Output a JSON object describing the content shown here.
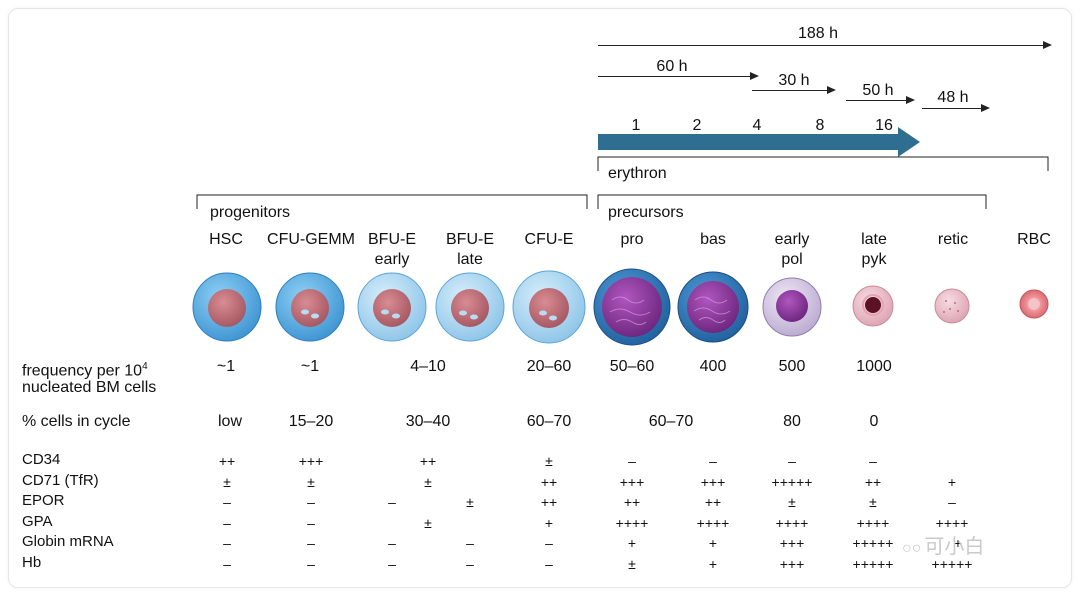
{
  "arrows": {
    "total": "188 h",
    "a1": "60 h",
    "a2": "30 h",
    "a3": "50 h",
    "a4": "48 h"
  },
  "division_counts": [
    "1",
    "2",
    "4",
    "8",
    "16"
  ],
  "brackets": {
    "erythron": "erythron",
    "progenitors": "progenitors",
    "precursors": "precursors"
  },
  "stages": [
    {
      "label": "HSC"
    },
    {
      "label": "CFU-GEMM"
    },
    {
      "label": "BFU-E\nearly"
    },
    {
      "label": "BFU-E\nlate"
    },
    {
      "label": "CFU-E"
    },
    {
      "label": "pro"
    },
    {
      "label": "bas"
    },
    {
      "label": "early\npol"
    },
    {
      "label": "late\npyk"
    },
    {
      "label": "retic"
    },
    {
      "label": "RBC"
    }
  ],
  "frequency": {
    "label": "frequency per 10",
    "sup": "4",
    "label2": "nucleated BM cells",
    "values": [
      "~1",
      "~1",
      "4–10",
      "20–60",
      "50–60",
      "400",
      "500",
      "1000"
    ]
  },
  "cycle": {
    "label": "% cells in cycle",
    "values": [
      "low",
      "15–20",
      "30–40",
      "60–70",
      "60–70",
      "80",
      "0"
    ]
  },
  "markers": [
    {
      "name": "CD34",
      "values": [
        "++",
        "+++",
        "++",
        "±",
        "–",
        "–",
        "–",
        "–"
      ]
    },
    {
      "name": "CD71 (TfR)",
      "values": [
        "±",
        "±",
        "±",
        "++",
        "+++",
        "+++",
        "+++++",
        "++",
        "+"
      ]
    },
    {
      "name": "EPOR",
      "values": [
        "–",
        "–",
        "–",
        "±",
        "++",
        "++",
        "++",
        "±",
        "±",
        "–"
      ]
    },
    {
      "name": "GPA",
      "values": [
        "–",
        "–",
        "±",
        "+",
        "++++",
        "++++",
        "++++",
        "++++",
        "++++"
      ]
    },
    {
      "name": "Globin mRNA",
      "values": [
        "–",
        "–",
        "–",
        "–",
        "–",
        "+",
        "+",
        "+++",
        "+++++",
        "+"
      ]
    },
    {
      "name": "Hb",
      "values": [
        "–",
        "–",
        "–",
        "–",
        "–",
        "±",
        "+",
        "+++",
        "+++++",
        "+++++"
      ]
    }
  ],
  "watermark": "可小白",
  "colors": {
    "arrow_blue": "#2e6f91",
    "progenitor_halo": "#5aa7dc",
    "precursor_halo": "#2f76b5",
    "nucleus_red": "#b86a73",
    "nucleus_purple": "#7a2f8c"
  }
}
